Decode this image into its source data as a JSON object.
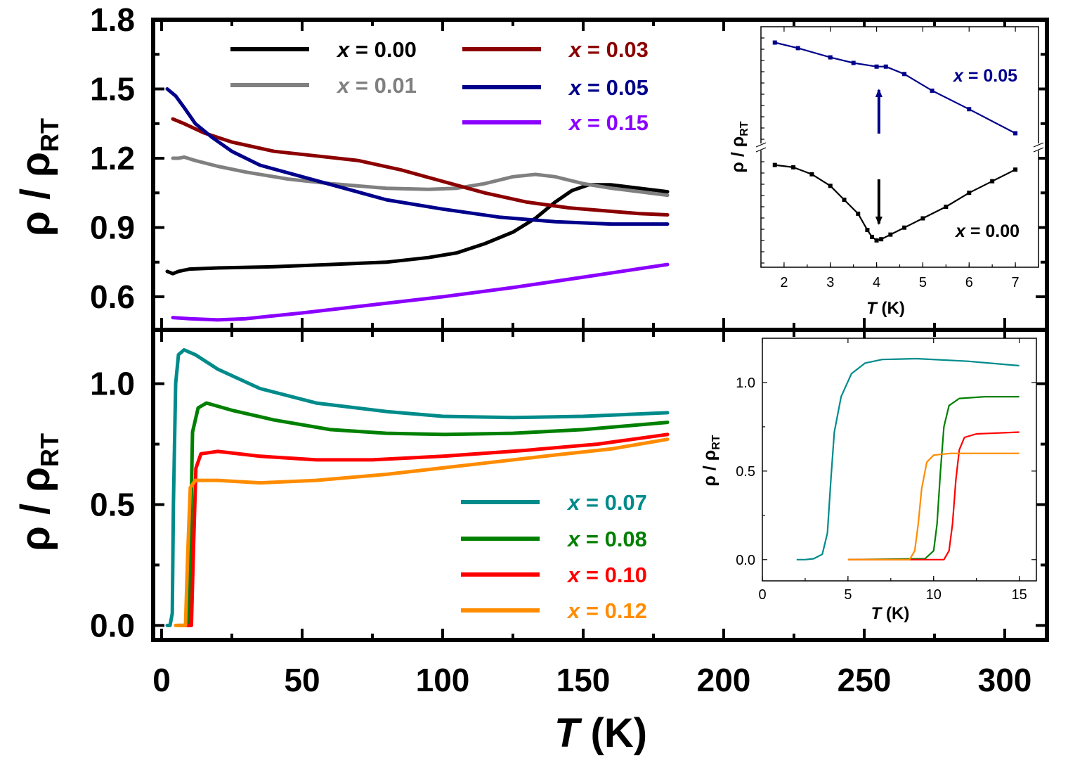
{
  "chart_data": [
    {
      "id": "top-main",
      "type": "line",
      "xlabel_var": "T",
      "xlabel_unit": "(K)",
      "ylabel": "ρ / ρ",
      "ylabel_sub": "RT",
      "xlim": [
        -3,
        315
      ],
      "ylim": [
        0.46,
        1.8
      ],
      "x_ticks": [
        0,
        50,
        100,
        150,
        200,
        250,
        300
      ],
      "y_ticks": [
        "1.8",
        "1.5",
        "1.2",
        "0.9",
        "0.6"
      ],
      "series": [
        {
          "name": "x = 0.00",
          "color": "#000000",
          "points": [
            [
              2,
              0.71
            ],
            [
              4,
              0.7
            ],
            [
              6,
              0.71
            ],
            [
              10,
              0.72
            ],
            [
              20,
              0.725
            ],
            [
              40,
              0.73
            ],
            [
              60,
              0.74
            ],
            [
              80,
              0.75
            ],
            [
              95,
              0.77
            ],
            [
              105,
              0.79
            ],
            [
              115,
              0.83
            ],
            [
              125,
              0.88
            ],
            [
              133,
              0.94
            ],
            [
              140,
              1.01
            ],
            [
              146,
              1.06
            ],
            [
              152,
              1.085
            ],
            [
              160,
              1.085
            ],
            [
              170,
              1.07
            ],
            [
              180,
              1.055
            ]
          ]
        },
        {
          "name": "x = 0.01",
          "color": "#808080",
          "points": [
            [
              4,
              1.2
            ],
            [
              6,
              1.2
            ],
            [
              8,
              1.205
            ],
            [
              12,
              1.19
            ],
            [
              20,
              1.165
            ],
            [
              30,
              1.14
            ],
            [
              45,
              1.11
            ],
            [
              60,
              1.09
            ],
            [
              80,
              1.07
            ],
            [
              95,
              1.065
            ],
            [
              105,
              1.07
            ],
            [
              115,
              1.09
            ],
            [
              125,
              1.12
            ],
            [
              133,
              1.13
            ],
            [
              140,
              1.12
            ],
            [
              150,
              1.09
            ],
            [
              160,
              1.07
            ],
            [
              170,
              1.055
            ],
            [
              180,
              1.04
            ]
          ]
        },
        {
          "name": "x = 0.03",
          "color": "#8B0000",
          "points": [
            [
              4,
              1.37
            ],
            [
              8,
              1.35
            ],
            [
              15,
              1.31
            ],
            [
              25,
              1.27
            ],
            [
              40,
              1.23
            ],
            [
              55,
              1.21
            ],
            [
              70,
              1.19
            ],
            [
              85,
              1.15
            ],
            [
              100,
              1.1
            ],
            [
              115,
              1.05
            ],
            [
              130,
              1.01
            ],
            [
              145,
              0.985
            ],
            [
              160,
              0.97
            ],
            [
              170,
              0.96
            ],
            [
              180,
              0.955
            ]
          ]
        },
        {
          "name": "x = 0.05",
          "color": "#00008B",
          "points": [
            [
              2,
              1.5
            ],
            [
              5,
              1.47
            ],
            [
              8,
              1.42
            ],
            [
              12,
              1.35
            ],
            [
              18,
              1.29
            ],
            [
              25,
              1.23
            ],
            [
              35,
              1.17
            ],
            [
              50,
              1.12
            ],
            [
              65,
              1.07
            ],
            [
              80,
              1.02
            ],
            [
              100,
              0.98
            ],
            [
              120,
              0.945
            ],
            [
              140,
              0.925
            ],
            [
              160,
              0.915
            ],
            [
              180,
              0.915
            ]
          ]
        },
        {
          "name": "x = 0.15",
          "color": "#8B00FF",
          "points": [
            [
              4,
              0.51
            ],
            [
              10,
              0.505
            ],
            [
              20,
              0.5
            ],
            [
              30,
              0.505
            ],
            [
              50,
              0.53
            ],
            [
              75,
              0.565
            ],
            [
              100,
              0.6
            ],
            [
              125,
              0.64
            ],
            [
              150,
              0.685
            ],
            [
              180,
              0.74
            ]
          ]
        }
      ]
    },
    {
      "id": "top-inset",
      "type": "line",
      "xlabel_var": "T",
      "xlabel_unit": "(K)",
      "ylabel": "ρ / ρ",
      "ylabel_sub": "RT",
      "xlim": [
        1.5,
        7.5
      ],
      "y_axis_break": true,
      "x_ticks": [
        2,
        3,
        4,
        5,
        6,
        7
      ],
      "transition_marker_T": 4.05,
      "series": [
        {
          "name": "x = 0.05",
          "color": "#00008B",
          "points": [
            [
              1.8,
              0.93
            ],
            [
              2.3,
              0.9
            ],
            [
              3.0,
              0.85
            ],
            [
              3.5,
              0.82
            ],
            [
              4.0,
              0.8
            ],
            [
              4.2,
              0.8
            ],
            [
              4.6,
              0.76
            ],
            [
              5.2,
              0.67
            ],
            [
              6.0,
              0.57
            ],
            [
              7.0,
              0.44
            ]
          ]
        },
        {
          "name": "x = 0.00",
          "color": "#000000",
          "points": [
            [
              1.8,
              0.98
            ],
            [
              2.2,
              0.97
            ],
            [
              2.6,
              0.94
            ],
            [
              3.0,
              0.89
            ],
            [
              3.3,
              0.83
            ],
            [
              3.6,
              0.77
            ],
            [
              3.8,
              0.7
            ],
            [
              3.9,
              0.67
            ],
            [
              4.0,
              0.655
            ],
            [
              4.1,
              0.66
            ],
            [
              4.3,
              0.68
            ],
            [
              4.6,
              0.71
            ],
            [
              5.0,
              0.75
            ],
            [
              5.5,
              0.8
            ],
            [
              6.0,
              0.86
            ],
            [
              6.5,
              0.91
            ],
            [
              7.0,
              0.96
            ]
          ]
        }
      ]
    },
    {
      "id": "bottom-main",
      "type": "line",
      "xlabel_var": "T",
      "xlabel_unit": "(K)",
      "ylabel": "ρ / ρ",
      "ylabel_sub": "RT",
      "xlim": [
        -3,
        315
      ],
      "ylim": [
        -0.06,
        1.22
      ],
      "x_ticks": [
        0,
        50,
        100,
        150,
        200,
        250,
        300
      ],
      "y_ticks": [
        "1.0",
        "0.5",
        "0.0"
      ],
      "series": [
        {
          "name": "x = 0.07",
          "color": "#008B8B",
          "points": [
            [
              2,
              0.0
            ],
            [
              3,
              0.0
            ],
            [
              3.8,
              0.05
            ],
            [
              4.2,
              0.5
            ],
            [
              5,
              1.0
            ],
            [
              6,
              1.12
            ],
            [
              8,
              1.14
            ],
            [
              12,
              1.12
            ],
            [
              20,
              1.06
            ],
            [
              35,
              0.98
            ],
            [
              55,
              0.92
            ],
            [
              80,
              0.885
            ],
            [
              100,
              0.865
            ],
            [
              125,
              0.86
            ],
            [
              150,
              0.865
            ],
            [
              180,
              0.88
            ]
          ]
        },
        {
          "name": "x = 0.08",
          "color": "#008000",
          "points": [
            [
              6,
              0.0
            ],
            [
              9.5,
              0.0
            ],
            [
              10.2,
              0.3
            ],
            [
              11,
              0.8
            ],
            [
              13,
              0.9
            ],
            [
              16,
              0.92
            ],
            [
              25,
              0.89
            ],
            [
              40,
              0.85
            ],
            [
              60,
              0.81
            ],
            [
              80,
              0.795
            ],
            [
              100,
              0.79
            ],
            [
              125,
              0.795
            ],
            [
              150,
              0.81
            ],
            [
              180,
              0.84
            ]
          ]
        },
        {
          "name": "x = 0.10",
          "color": "#FF0000",
          "points": [
            [
              8,
              0.0
            ],
            [
              10.6,
              0.0
            ],
            [
              11.3,
              0.3
            ],
            [
              12.2,
              0.65
            ],
            [
              14,
              0.71
            ],
            [
              20,
              0.72
            ],
            [
              35,
              0.7
            ],
            [
              55,
              0.685
            ],
            [
              75,
              0.685
            ],
            [
              100,
              0.7
            ],
            [
              130,
              0.725
            ],
            [
              155,
              0.75
            ],
            [
              180,
              0.79
            ]
          ]
        },
        {
          "name": "x = 0.12",
          "color": "#FF8C00",
          "points": [
            [
              5,
              0.0
            ],
            [
              8.5,
              0.0
            ],
            [
              9.3,
              0.3
            ],
            [
              10.2,
              0.57
            ],
            [
              12,
              0.6
            ],
            [
              20,
              0.6
            ],
            [
              35,
              0.59
            ],
            [
              55,
              0.6
            ],
            [
              80,
              0.625
            ],
            [
              110,
              0.665
            ],
            [
              140,
              0.705
            ],
            [
              160,
              0.73
            ],
            [
              180,
              0.77
            ]
          ]
        }
      ]
    },
    {
      "id": "bottom-inset",
      "type": "line",
      "xlabel_var": "T",
      "xlabel_unit": "(K)",
      "ylabel": "ρ / ρ",
      "ylabel_sub": "RT",
      "xlim": [
        0,
        16
      ],
      "ylim": [
        -0.12,
        1.25
      ],
      "x_ticks": [
        "0",
        "5",
        "10",
        "15"
      ],
      "y_ticks": [
        "1.0",
        "0.5",
        "0.0"
      ],
      "series": [
        {
          "name": "x = 0.07",
          "color": "#008B8B",
          "points": [
            [
              2,
              0.0
            ],
            [
              2.5,
              0.0
            ],
            [
              3,
              0.005
            ],
            [
              3.5,
              0.03
            ],
            [
              3.8,
              0.15
            ],
            [
              4.0,
              0.45
            ],
            [
              4.2,
              0.72
            ],
            [
              4.6,
              0.92
            ],
            [
              5.2,
              1.05
            ],
            [
              6,
              1.11
            ],
            [
              7,
              1.13
            ],
            [
              9,
              1.135
            ],
            [
              12,
              1.12
            ],
            [
              15,
              1.095
            ]
          ]
        },
        {
          "name": "x = 0.08",
          "color": "#008000",
          "points": [
            [
              5,
              0.0
            ],
            [
              9.5,
              0.005
            ],
            [
              10.0,
              0.05
            ],
            [
              10.2,
              0.2
            ],
            [
              10.4,
              0.5
            ],
            [
              10.6,
              0.75
            ],
            [
              10.9,
              0.87
            ],
            [
              11.5,
              0.91
            ],
            [
              13,
              0.92
            ],
            [
              15,
              0.92
            ]
          ]
        },
        {
          "name": "x = 0.10",
          "color": "#FF0000",
          "points": [
            [
              5,
              0.0
            ],
            [
              10.6,
              0.0
            ],
            [
              10.9,
              0.05
            ],
            [
              11.1,
              0.2
            ],
            [
              11.3,
              0.45
            ],
            [
              11.5,
              0.62
            ],
            [
              11.8,
              0.69
            ],
            [
              12.5,
              0.71
            ],
            [
              15,
              0.72
            ]
          ]
        },
        {
          "name": "x = 0.12",
          "color": "#FF8C00",
          "points": [
            [
              5,
              0.0
            ],
            [
              8.6,
              0.0
            ],
            [
              8.9,
              0.05
            ],
            [
              9.1,
              0.2
            ],
            [
              9.3,
              0.4
            ],
            [
              9.6,
              0.55
            ],
            [
              10.0,
              0.59
            ],
            [
              11,
              0.6
            ],
            [
              15,
              0.6
            ]
          ]
        }
      ]
    }
  ]
}
